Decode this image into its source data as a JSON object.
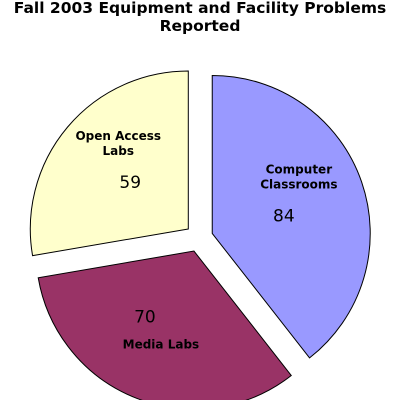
{
  "chart_data": {
    "type": "pie",
    "title": "Fall 2003 Equipment and Facility Problems Reported",
    "title_lines": [
      "Fall 2003 Equipment and Facility Problems",
      "Reported"
    ],
    "exploded": true,
    "legend": "none",
    "slices": [
      {
        "label": "Computer Classrooms",
        "label_lines": [
          "Computer",
          "Classrooms"
        ],
        "value": 84,
        "color": "#9999ff"
      },
      {
        "label": "Media Labs",
        "label_lines": [
          "Media Labs"
        ],
        "value": 70,
        "color": "#993366"
      },
      {
        "label": "Open Access Labs",
        "label_lines": [
          "Open Access",
          "Labs"
        ],
        "value": 59,
        "color": "#ffffcc"
      }
    ]
  }
}
